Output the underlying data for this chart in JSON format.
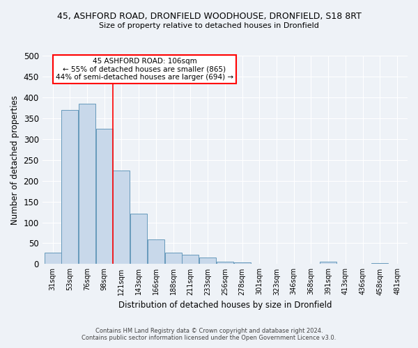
{
  "title_line1": "45, ASHFORD ROAD, DRONFIELD WOODHOUSE, DRONFIELD, S18 8RT",
  "title_line2": "Size of property relative to detached houses in Dronfield",
  "xlabel": "Distribution of detached houses by size in Dronfield",
  "ylabel": "Number of detached properties",
  "categories": [
    "31sqm",
    "53sqm",
    "76sqm",
    "98sqm",
    "121sqm",
    "143sqm",
    "166sqm",
    "188sqm",
    "211sqm",
    "233sqm",
    "256sqm",
    "278sqm",
    "301sqm",
    "323sqm",
    "346sqm",
    "368sqm",
    "391sqm",
    "413sqm",
    "436sqm",
    "458sqm",
    "481sqm"
  ],
  "values": [
    28,
    370,
    385,
    325,
    225,
    121,
    59,
    28,
    22,
    16,
    6,
    4,
    0,
    0,
    0,
    0,
    5,
    0,
    0,
    3,
    0
  ],
  "bar_color": "#c8d8ea",
  "bar_edge_color": "#6699bb",
  "ylim": [
    0,
    500
  ],
  "yticks": [
    0,
    50,
    100,
    150,
    200,
    250,
    300,
    350,
    400,
    450,
    500
  ],
  "vline_color": "red",
  "annotation_title": "45 ASHFORD ROAD: 106sqm",
  "annotation_line1": "← 55% of detached houses are smaller (865)",
  "annotation_line2": "44% of semi-detached houses are larger (694) →",
  "annotation_box_color": "white",
  "annotation_box_edge": "red",
  "footer_line1": "Contains HM Land Registry data © Crown copyright and database right 2024.",
  "footer_line2": "Contains public sector information licensed under the Open Government Licence v3.0.",
  "background_color": "#eef2f7",
  "grid_color": "white"
}
